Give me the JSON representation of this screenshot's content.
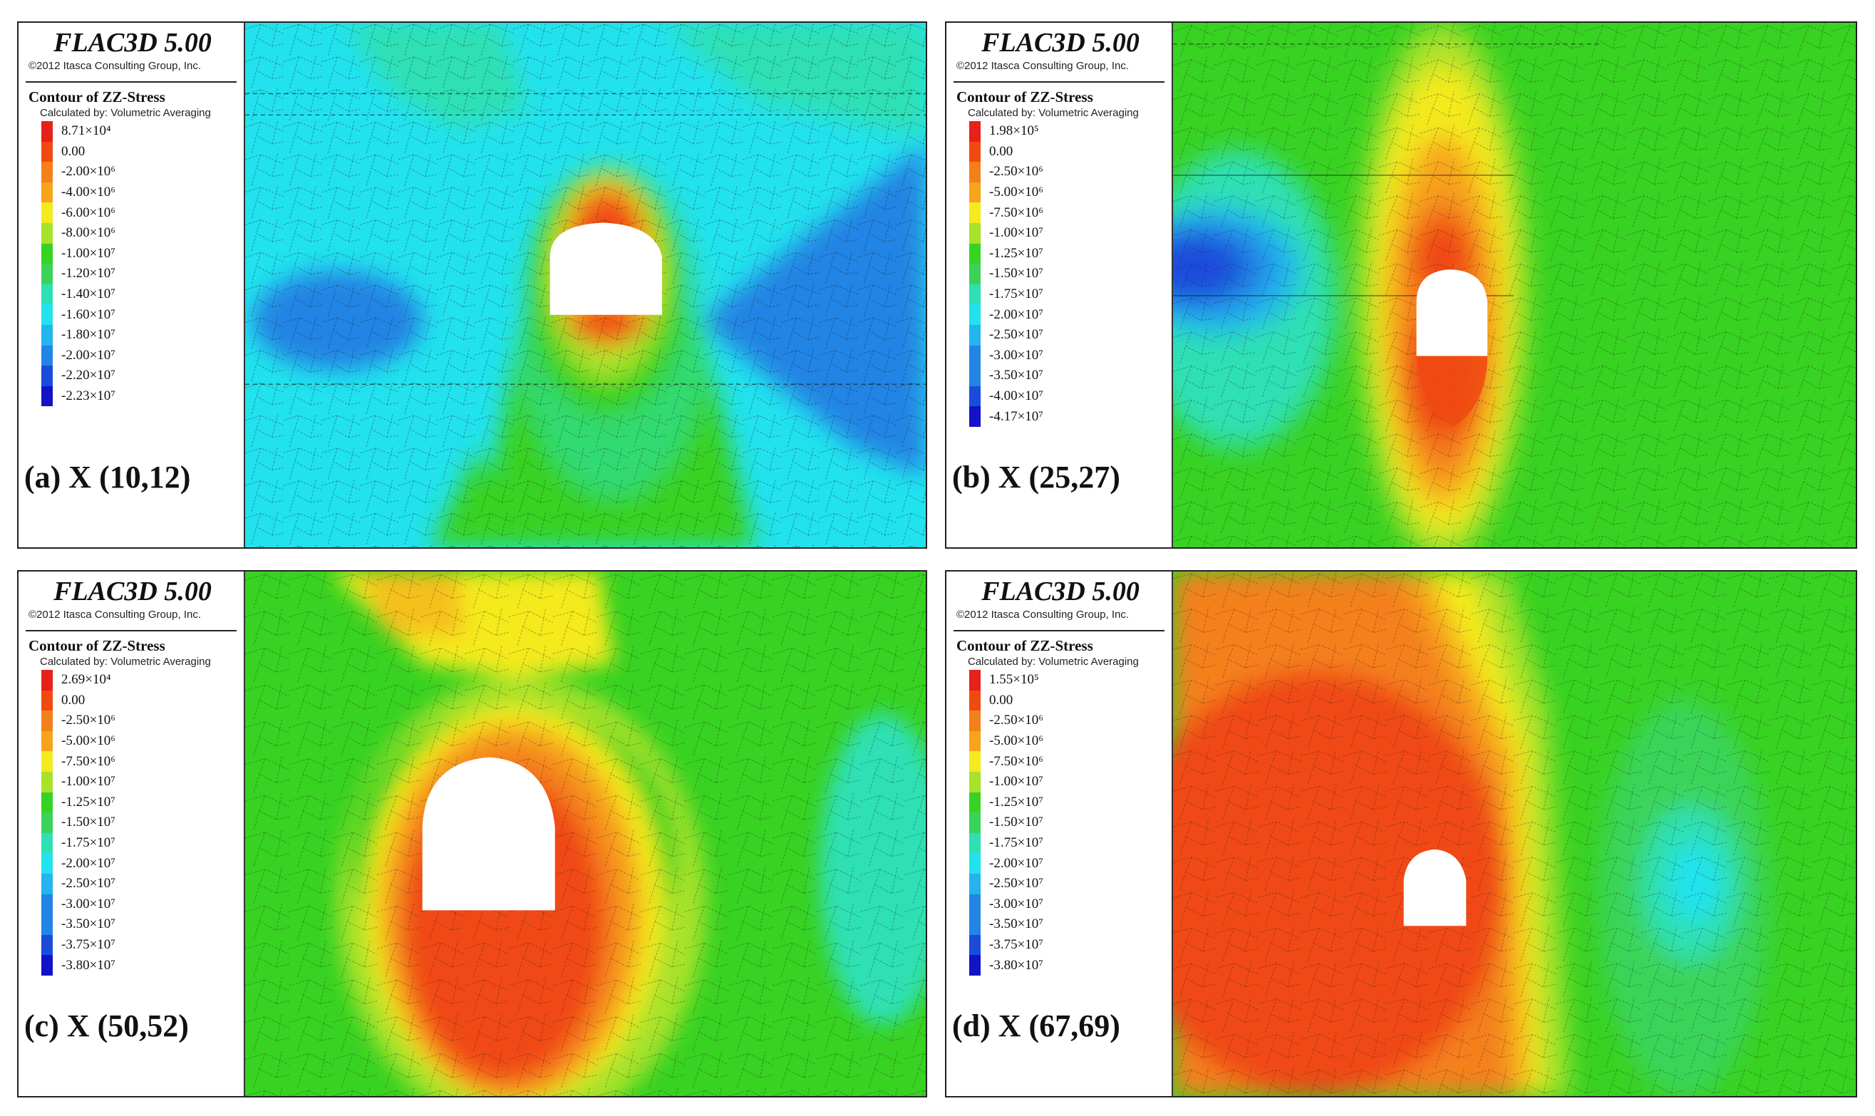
{
  "software": "FLAC3D 5.00",
  "copyright": "©2012 Itasca Consulting Group, Inc.",
  "contour_title": "Contour of ZZ-Stress",
  "calculated_by": "Calculated by: Volumetric Averaging",
  "colors": {
    "red": "#e8201a",
    "red_orange": "#f04a12",
    "orange": "#f4801a",
    "light_orange": "#f6a41c",
    "yellow": "#f4ea1e",
    "yellow_green": "#a8e22a",
    "green": "#38d222",
    "green2": "#3ad45a",
    "cyan_green": "#2ee0b4",
    "cyan": "#22e2ee",
    "light_blue": "#24b4ee",
    "blue": "#2284e4",
    "deep_blue": "#1a4cdc",
    "navy": "#1212c8"
  },
  "panels": [
    {
      "caption": "(a) X (10,12)",
      "legend": [
        "8.71×10⁴",
        "0.00",
        "-2.00×10⁶",
        "-4.00×10⁶",
        "-6.00×10⁶",
        "-8.00×10⁶",
        "-1.00×10⁷",
        "-1.20×10⁷",
        "-1.40×10⁷",
        "-1.60×10⁷",
        "-1.80×10⁷",
        "-2.00×10⁷",
        "-2.20×10⁷",
        "-2.23×10⁷"
      ]
    },
    {
      "caption": "(b) X (25,27)",
      "legend": [
        "1.98×10⁵",
        "0.00",
        "-2.50×10⁶",
        "-5.00×10⁶",
        "-7.50×10⁶",
        "-1.00×10⁷",
        "-1.25×10⁷",
        "-1.50×10⁷",
        "-1.75×10⁷",
        "-2.00×10⁷",
        "-2.50×10⁷",
        "-3.00×10⁷",
        "-3.50×10⁷",
        "-4.00×10⁷",
        "-4.17×10⁷"
      ]
    },
    {
      "caption": "(c) X (50,52)",
      "legend": [
        "2.69×10⁴",
        "0.00",
        "-2.50×10⁶",
        "-5.00×10⁶",
        "-7.50×10⁶",
        "-1.00×10⁷",
        "-1.25×10⁷",
        "-1.50×10⁷",
        "-1.75×10⁷",
        "-2.00×10⁷",
        "-2.50×10⁷",
        "-3.00×10⁷",
        "-3.50×10⁷",
        "-3.75×10⁷",
        "-3.80×10⁷"
      ]
    },
    {
      "caption": "(d) X (67,69)",
      "legend": [
        "1.55×10⁵",
        "0.00",
        "-2.50×10⁶",
        "-5.00×10⁶",
        "-7.50×10⁶",
        "-1.00×10⁷",
        "-1.25×10⁷",
        "-1.50×10⁷",
        "-1.75×10⁷",
        "-2.00×10⁷",
        "-2.50×10⁷",
        "-3.00×10⁷",
        "-3.50×10⁷",
        "-3.75×10⁷",
        "-3.80×10⁷"
      ]
    }
  ]
}
